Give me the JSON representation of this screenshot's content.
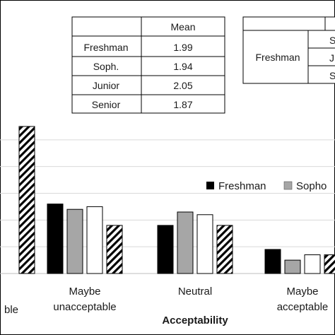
{
  "chart_data": {
    "type": "bar",
    "xlabel": "Acceptability",
    "ylabel": "",
    "title": "",
    "categories": [
      {
        "lines": [
          "ble"
        ]
      },
      {
        "lines": [
          "Maybe",
          "unacceptable"
        ]
      },
      {
        "lines": [
          "Neutral"
        ]
      },
      {
        "lines": [
          "Maybe",
          "acceptable"
        ]
      }
    ],
    "series": [
      {
        "name": "Freshman",
        "fill": "#000000",
        "pattern": "solid",
        "values": [
          null,
          26,
          18,
          9
        ]
      },
      {
        "name": "Sophomore",
        "fill": "#a6a6a6",
        "pattern": "solid",
        "values": [
          null,
          24,
          23,
          5
        ]
      },
      {
        "name": "Junior",
        "fill": "#ffffff",
        "pattern": "solid",
        "values": [
          null,
          25,
          22,
          7
        ]
      },
      {
        "name": "Senior",
        "fill": "#ffffff",
        "pattern": "hatch",
        "values": [
          55,
          18,
          18,
          7
        ]
      }
    ],
    "ylim": [
      0,
      60
    ],
    "grid": true,
    "legend": {
      "placement": "right",
      "entries": [
        "Freshman",
        "Sopho"
      ]
    }
  },
  "mean_table": {
    "header": "Mean",
    "rows": [
      {
        "label": "Freshman",
        "value": "1.99"
      },
      {
        "label": "Soph.",
        "value": "1.94"
      },
      {
        "label": "Junior",
        "value": "2.05"
      },
      {
        "label": "Senior",
        "value": "1.87"
      }
    ]
  },
  "second_table": {
    "row_label": "Freshman",
    "cells": [
      "S",
      "J",
      "S"
    ]
  }
}
